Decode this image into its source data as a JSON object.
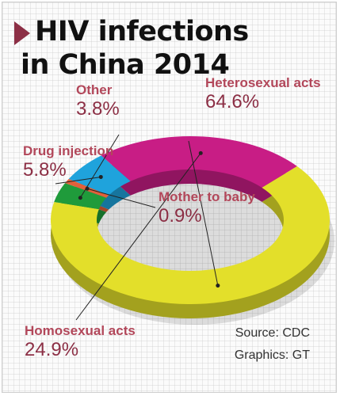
{
  "title_line1": "HIV infections",
  "title_line2": "in China 2014",
  "source": "Source: CDC",
  "graphics": "Graphics: GT",
  "colors": {
    "heterosexual": "#e3df2a",
    "other": "#1f9b3b",
    "mother": "#e2603a",
    "drug": "#1fa3dc",
    "homosexual": "#c81d85",
    "label": "#b2475a",
    "title_arrow": "#8c2f45"
  },
  "chart_data": {
    "type": "pie",
    "title": "HIV infections in China 2014",
    "slices": [
      {
        "label": "Heterosexual acts",
        "pct_text": "64.6%",
        "value": 64.6
      },
      {
        "label": "Other",
        "pct_text": "3.8%",
        "value": 3.8
      },
      {
        "label": "Mother to baby",
        "pct_text": "0.9%",
        "value": 0.9
      },
      {
        "label": "Drug injection",
        "pct_text": "5.8%",
        "value": 5.8
      },
      {
        "label": "Homosexual acts",
        "pct_text": "24.9%",
        "value": 24.9
      }
    ]
  }
}
